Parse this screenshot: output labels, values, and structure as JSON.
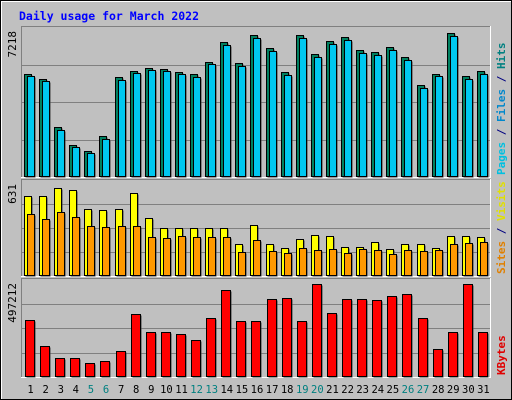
{
  "chart_data": {
    "type": "bar",
    "title": "Daily usage for March 2022",
    "categories": [
      "1",
      "2",
      "3",
      "4",
      "5",
      "6",
      "7",
      "8",
      "9",
      "10",
      "11",
      "12",
      "13",
      "14",
      "15",
      "16",
      "17",
      "18",
      "19",
      "20",
      "21",
      "22",
      "23",
      "24",
      "25",
      "26",
      "27",
      "28",
      "29",
      "30",
      "31"
    ],
    "weekend_days": [
      "5",
      "6",
      "12",
      "13",
      "19",
      "20",
      "26",
      "27"
    ],
    "panels": [
      {
        "name": "hits-files-pages",
        "max_label": "7218",
        "ymax": 7218,
        "right_label_parts": [
          {
            "text": "Pages",
            "color": "#00c0e0"
          },
          {
            "text": " / ",
            "color": "#000080"
          },
          {
            "text": "Files",
            "color": "#0088cc"
          },
          {
            "text": " / ",
            "color": "#000080"
          },
          {
            "text": "Hits",
            "color": "#008080"
          }
        ],
        "series": [
          {
            "name": "Hits",
            "color": "#008060",
            "values": [
              5180,
              4920,
              2490,
              1610,
              1280,
              2050,
              5010,
              5320,
              5450,
              5420,
              5260,
              5140,
              5780,
              6780,
              5700,
              7140,
              6480,
              5250,
              7120,
              6150,
              6820,
              7010,
              6370,
              6280,
              6520,
              6020,
              4630,
              5180,
              7240,
              5060,
              5320
            ]
          },
          {
            "name": "Files",
            "color": "#00c8f0",
            "values": [
              5080,
              4800,
              2350,
              1520,
              1180,
              1920,
              4880,
              5200,
              5350,
              5330,
              5150,
              5010,
              5640,
              6620,
              5560,
              6980,
              6320,
              5110,
              6960,
              6010,
              6670,
              6870,
              6230,
              6140,
              6380,
              5870,
              4480,
              5040,
              7080,
              4910,
              5180
            ]
          }
        ]
      },
      {
        "name": "visits-sites",
        "max_label": "631",
        "ymax": 631,
        "right_label_parts": [
          {
            "text": "Sites",
            "color": "#e08000"
          },
          {
            "text": " / ",
            "color": "#000080"
          },
          {
            "text": "Visits",
            "color": "#e0e000"
          }
        ],
        "series": [
          {
            "name": "Visits",
            "color": "#ffff00",
            "values": [
              560,
              560,
              620,
              600,
              470,
              460,
              470,
              580,
              410,
              340,
              340,
              340,
              340,
              340,
              225,
              360,
              222,
              195,
              260,
              290,
              280,
              200,
              200,
              240,
              190,
              225,
              225,
              195,
              280,
              280,
              270
            ]
          },
          {
            "name": "Sites",
            "color": "#ff9900",
            "values": [
              435,
              400,
              450,
              415,
              350,
              345,
              350,
              350,
              275,
              265,
              280,
              275,
              275,
              275,
              165,
              255,
              175,
              160,
              195,
              185,
              190,
              160,
              190,
              180,
              155,
              180,
              175,
              185,
              225,
              230,
              240
            ]
          }
        ]
      },
      {
        "name": "kbytes",
        "max_label": "497212",
        "ymax": 497212,
        "right_label_parts": [
          {
            "text": "KBytes",
            "color": "#e00000"
          }
        ],
        "series": [
          {
            "name": "KBytes",
            "color": "#ff0000",
            "values": [
              310000,
              165000,
              100000,
              105000,
              75000,
              85000,
              140000,
              340000,
              245000,
              245000,
              235000,
              200000,
              320000,
              470000,
              300000,
              305000,
              420000,
              425000,
              300000,
              500000,
              345000,
              420000,
              420000,
              415000,
              440000,
              450000,
              320000,
              150000,
              245000,
              500000,
              245000
            ]
          }
        ]
      }
    ]
  }
}
